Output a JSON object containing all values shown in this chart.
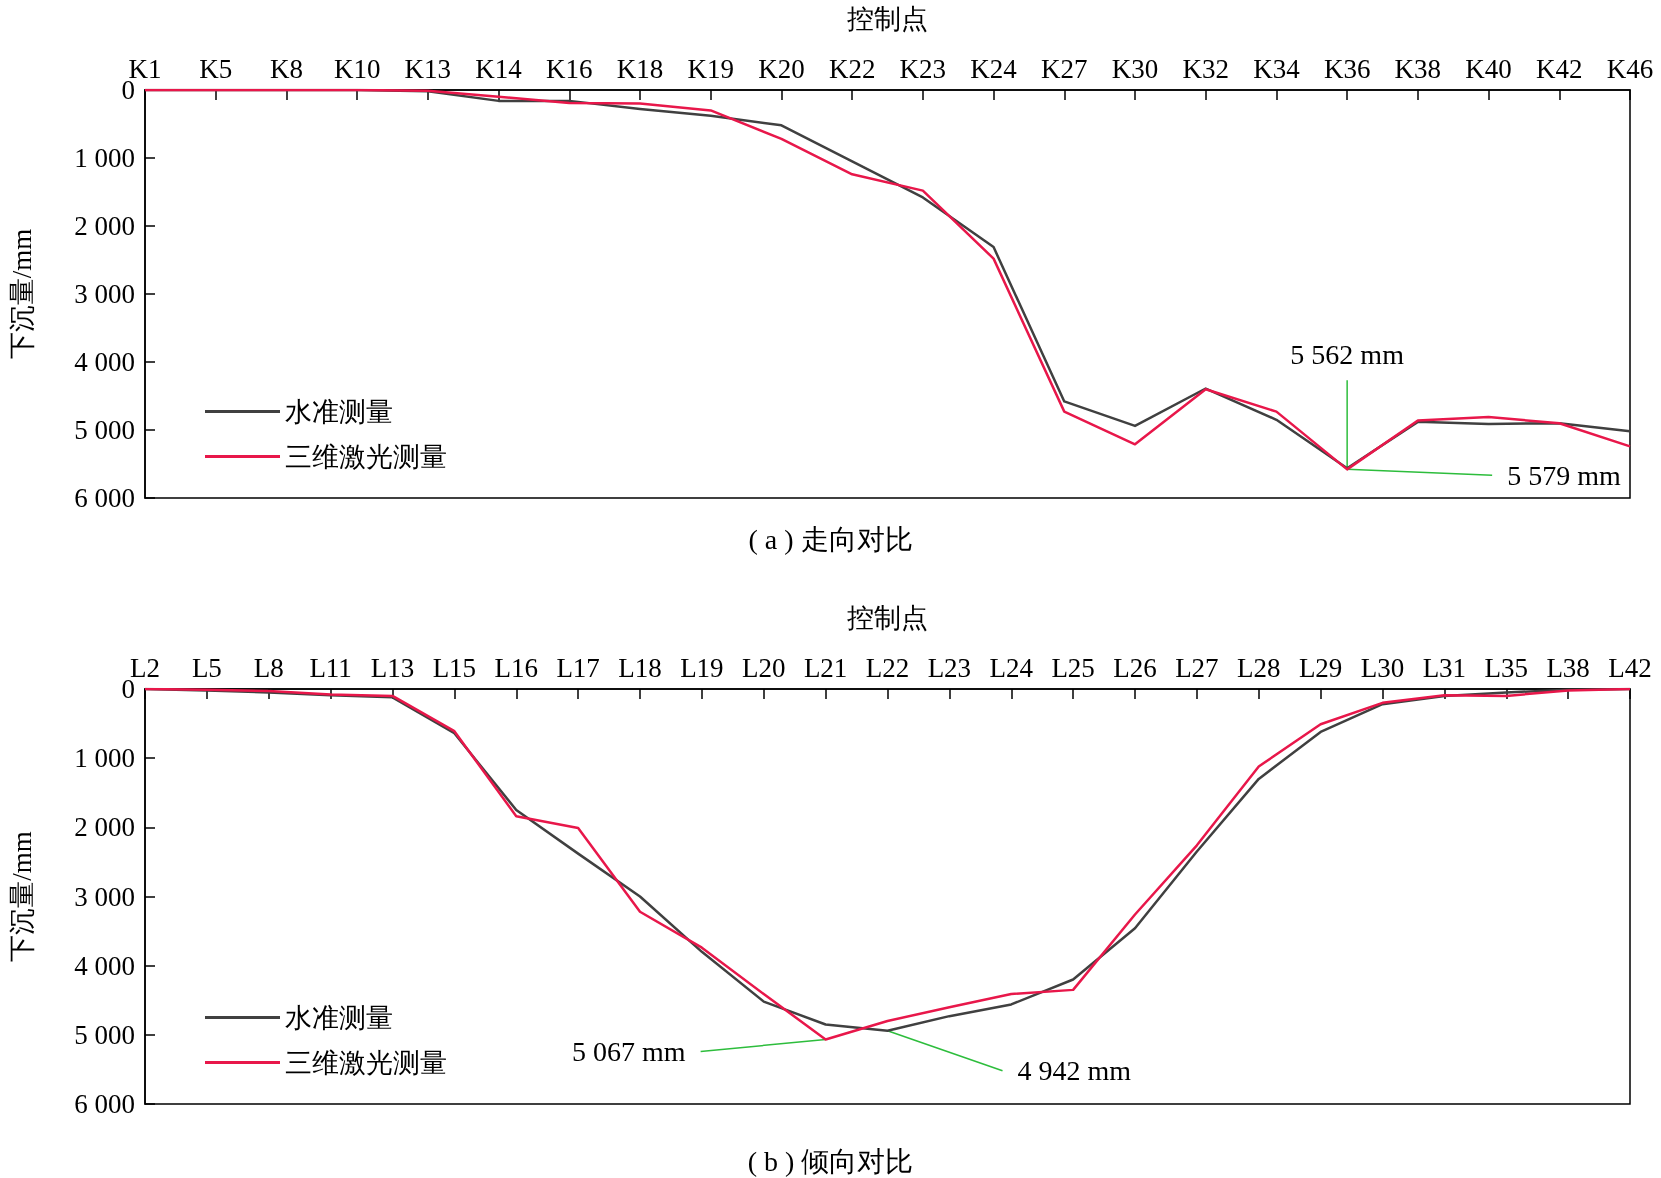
{
  "chart_data": [
    {
      "type": "line",
      "title": "( a ) 走向对比",
      "xlabel": "控制点",
      "ylabel": "下沉量/mm",
      "categories": [
        "K1",
        "K5",
        "K8",
        "K10",
        "K13",
        "K14",
        "K16",
        "K18",
        "K19",
        "K20",
        "K22",
        "K23",
        "K24",
        "K27",
        "K30",
        "K32",
        "K34",
        "K36",
        "K38",
        "K40",
        "K42",
        "K46"
      ],
      "series": [
        {
          "name": "水准测量",
          "color": "#404040",
          "values": [
            0,
            0,
            0,
            0,
            20,
            160,
            160,
            280,
            380,
            520,
            1050,
            1580,
            2310,
            4580,
            4940,
            4390,
            4850,
            5562,
            4880,
            4910,
            4900,
            5020
          ]
        },
        {
          "name": "三维激光测量",
          "color": "#e8174a",
          "values": [
            0,
            0,
            0,
            0,
            10,
            100,
            190,
            200,
            300,
            720,
            1240,
            1480,
            2480,
            4730,
            5210,
            4400,
            4730,
            5579,
            4860,
            4810,
            4900,
            5240
          ]
        }
      ],
      "ylim": [
        6000,
        0
      ],
      "yticks": [
        0,
        {
          "value": 1000,
          "label": "1 000"
        },
        {
          "value": 2000,
          "label": "2 000"
        },
        {
          "value": 3000,
          "label": "3 000"
        },
        {
          "value": 4000,
          "label": "4 000"
        },
        {
          "value": 5000,
          "label": "5 000"
        },
        {
          "value": 6000,
          "label": "6 000"
        }
      ],
      "legend": "bottom left",
      "annotations": [
        {
          "text": "5 562 mm",
          "x": "K36",
          "y": 5562
        },
        {
          "text": "5 579 mm",
          "x": "K36",
          "y": 5579
        }
      ]
    },
    {
      "type": "line",
      "title": "( b ) 倾向对比",
      "xlabel": "控制点",
      "ylabel": "下沉量/mm",
      "categories": [
        "L2",
        "L5",
        "L8",
        "L11",
        "L13",
        "L15",
        "L16",
        "L17",
        "L18",
        "L19",
        "L20",
        "L21",
        "L22",
        "L23",
        "L24",
        "L25",
        "L26",
        "L27",
        "L28",
        "L29",
        "L30",
        "L31",
        "L35",
        "L38",
        "L42"
      ],
      "series": [
        {
          "name": "水准测量",
          "color": "#404040",
          "values": [
            0,
            20,
            50,
            90,
            120,
            640,
            1750,
            2380,
            3000,
            3800,
            4520,
            4850,
            4942,
            4730,
            4560,
            4200,
            3460,
            2350,
            1300,
            620,
            220,
            100,
            50,
            10,
            0
          ]
        },
        {
          "name": "三维激光测量",
          "color": "#e8174a",
          "values": [
            0,
            10,
            30,
            80,
            100,
            610,
            1840,
            2010,
            3220,
            3740,
            4410,
            5067,
            4800,
            4600,
            4410,
            4350,
            3260,
            2260,
            1120,
            510,
            200,
            90,
            100,
            20,
            0
          ]
        }
      ],
      "ylim": [
        6000,
        0
      ],
      "yticks": [
        0,
        {
          "value": 1000,
          "label": "1 000"
        },
        {
          "value": 2000,
          "label": "2 000"
        },
        {
          "value": 3000,
          "label": "3 000"
        },
        {
          "value": 4000,
          "label": "4 000"
        },
        {
          "value": 5000,
          "label": "5 000"
        },
        {
          "value": 6000,
          "label": "6 000"
        }
      ],
      "legend": "bottom left",
      "annotations": [
        {
          "text": "5 067 mm",
          "x": "L21",
          "y": 5067
        },
        {
          "text": "4 942 mm",
          "x": "L22",
          "y": 4942
        }
      ]
    }
  ]
}
